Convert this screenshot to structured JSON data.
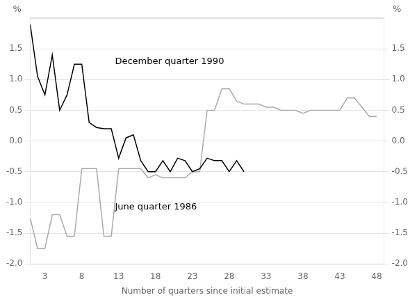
{
  "chart_data": {
    "type": "line",
    "xlabel": "Number of quarters since initial estimate",
    "ylabel": "%",
    "y2label": "%",
    "xlim": [
      1,
      49
    ],
    "xticks": [
      3,
      8,
      13,
      18,
      23,
      28,
      33,
      38,
      43,
      48
    ],
    "ylim": [
      -2.0,
      2.0
    ],
    "yticks": [
      {
        "value": -2.0,
        "label": "-2.0"
      },
      -1.5,
      {
        "value": -1.0,
        "label": "-1.0"
      },
      -0.5,
      {
        "value": 0.0,
        "label": "0.0"
      },
      0.5,
      {
        "value": 1.0,
        "label": "1.0"
      },
      1.5
    ],
    "y2lim": [
      -2.0,
      2.0
    ],
    "y2ticks": [
      {
        "value": -2.0,
        "label": "-2.0"
      },
      -1.5,
      {
        "value": -1.0,
        "label": "-1.0"
      },
      -0.5,
      {
        "value": 0.0,
        "label": "0.0"
      },
      0.5,
      {
        "value": 1.0,
        "label": "1.0"
      },
      1.5
    ],
    "grid": "y",
    "series": [
      {
        "name": "December quarter 1990",
        "color": "#000000",
        "x": [
          1,
          2,
          3,
          4,
          5,
          6,
          7,
          8,
          9,
          10,
          11,
          12,
          13,
          14,
          15,
          16,
          17,
          18,
          19,
          20,
          21,
          22,
          23,
          24,
          25,
          26,
          27,
          28,
          29,
          30
        ],
        "values": [
          1.9,
          1.05,
          0.75,
          1.4,
          0.5,
          0.75,
          1.25,
          1.25,
          0.3,
          0.22,
          0.2,
          0.2,
          -0.28,
          0.05,
          0.1,
          -0.32,
          -0.5,
          -0.5,
          -0.32,
          -0.5,
          -0.28,
          -0.32,
          -0.5,
          -0.45,
          -0.28,
          -0.32,
          -0.32,
          -0.5,
          -0.32,
          -0.5
        ]
      },
      {
        "name": "June quarter 1986",
        "color": "#aaaaaa",
        "x": [
          1,
          2,
          3,
          4,
          5,
          6,
          7,
          8,
          9,
          10,
          11,
          12,
          13,
          14,
          15,
          16,
          17,
          18,
          19,
          20,
          21,
          22,
          23,
          24,
          25,
          26,
          27,
          28,
          29,
          30,
          31,
          32,
          33,
          34,
          35,
          36,
          37,
          38,
          39,
          40,
          41,
          42,
          43,
          44,
          45,
          46,
          47,
          48
        ],
        "values": [
          -1.25,
          -1.75,
          -1.75,
          -1.2,
          -1.2,
          -1.55,
          -1.55,
          -0.45,
          -0.45,
          -0.45,
          -1.55,
          -1.55,
          -0.45,
          -0.45,
          -0.45,
          -0.45,
          -0.6,
          -0.55,
          -0.6,
          -0.6,
          -0.6,
          -0.6,
          -0.5,
          -0.5,
          0.5,
          0.5,
          0.85,
          0.85,
          0.65,
          0.6,
          0.6,
          0.6,
          0.55,
          0.55,
          0.5,
          0.5,
          0.5,
          0.45,
          0.5,
          0.5,
          0.5,
          0.5,
          0.5,
          0.7,
          0.7,
          0.55,
          0.4,
          0.4
        ]
      }
    ],
    "annotations": [
      {
        "text": "December quarter 1990",
        "x": 12.5,
        "y": 1.22
      },
      {
        "text": "June quarter 1986",
        "x": 12.5,
        "y": -1.15
      }
    ]
  }
}
